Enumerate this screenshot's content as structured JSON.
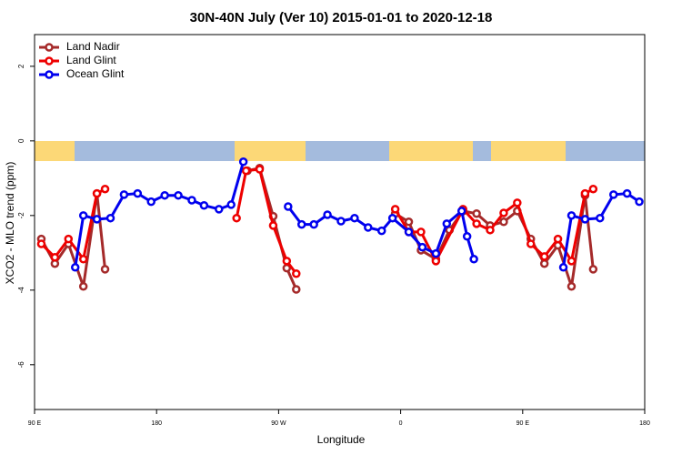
{
  "chart_data": {
    "type": "line",
    "title": "30N-40N July (Ver 10)   2015-01-01 to 2020-12-18",
    "x_label": "Longitude",
    "y_label": "XCO2 - MLO trend (ppm)",
    "xlim": [
      90,
      540
    ],
    "xticks": [
      {
        "value": 90,
        "label": "90 E"
      },
      180,
      {
        "value": 270,
        "label": "90 W"
      },
      {
        "value": 360,
        "label": "0"
      },
      {
        "value": 450,
        "label": "90 E"
      },
      {
        "value": 540,
        "label": "180"
      }
    ],
    "ylim": [
      -7.2,
      2.85
    ],
    "yticks": [
      -6,
      -4,
      -2,
      0,
      2
    ],
    "legend": "top-left",
    "series": [
      {
        "name": "Land Nadir",
        "color": "#a52a2a",
        "x": [
          95,
          105,
          115,
          126,
          136,
          142,
          null,
          247,
          256,
          266,
          276,
          283,
          null,
          356,
          366,
          375,
          386,
          396,
          406,
          416,
          426,
          436,
          446,
          456,
          466,
          476,
          486,
          496,
          502
        ],
        "values": [
          -2.63,
          -3.29,
          -2.76,
          -3.9,
          -1.41,
          -3.44,
          null,
          -0.8,
          -0.73,
          -2.02,
          -3.41,
          -3.98,
          null,
          -1.95,
          -2.17,
          -2.93,
          -3.17,
          -2.39,
          -1.88,
          -1.95,
          -2.27,
          -2.17,
          -1.88,
          -2.63,
          -3.29,
          -2.8,
          -3.9,
          -1.46,
          -3.44
        ]
      },
      {
        "name": "Land Glint",
        "color": "#ee0000",
        "x": [
          95,
          105,
          115,
          126,
          136,
          142,
          null,
          239,
          246,
          256,
          266,
          276,
          283,
          null,
          356,
          366,
          375,
          386,
          406,
          416,
          426,
          436,
          446,
          456,
          466,
          476,
          486,
          496,
          502
        ],
        "values": [
          -2.76,
          -3.12,
          -2.63,
          -3.17,
          -1.41,
          -1.29,
          null,
          -2.07,
          -0.8,
          -0.76,
          -2.27,
          -3.22,
          -3.56,
          null,
          -1.83,
          -2.44,
          -2.44,
          -3.22,
          -1.83,
          -2.22,
          -2.39,
          -1.93,
          -1.66,
          -2.76,
          -3.1,
          -2.63,
          -3.22,
          -1.41,
          -1.29
        ]
      },
      {
        "name": "Ocean Glint",
        "color": "#0000ee",
        "x": [
          120,
          126,
          136,
          146,
          156,
          166,
          176,
          186,
          196,
          206,
          215,
          226,
          235,
          244,
          null,
          277,
          287,
          296,
          306,
          316,
          326,
          336,
          346,
          354,
          366,
          376,
          386,
          394,
          405,
          409,
          414,
          null,
          480,
          486,
          496,
          507,
          517,
          527,
          536
        ],
        "values": [
          -3.39,
          -2.0,
          -2.1,
          -2.07,
          -1.44,
          -1.41,
          -1.63,
          -1.46,
          -1.46,
          -1.59,
          -1.73,
          -1.83,
          -1.71,
          -0.56,
          null,
          -1.76,
          -2.24,
          -2.24,
          -1.98,
          -2.15,
          -2.07,
          -2.32,
          -2.41,
          -2.07,
          -2.44,
          -2.85,
          -3.02,
          -2.22,
          -1.88,
          -2.56,
          -3.17,
          null,
          -3.39,
          -2.0,
          -2.1,
          -2.07,
          -1.44,
          -1.41,
          -1.63
        ]
      }
    ]
  }
}
